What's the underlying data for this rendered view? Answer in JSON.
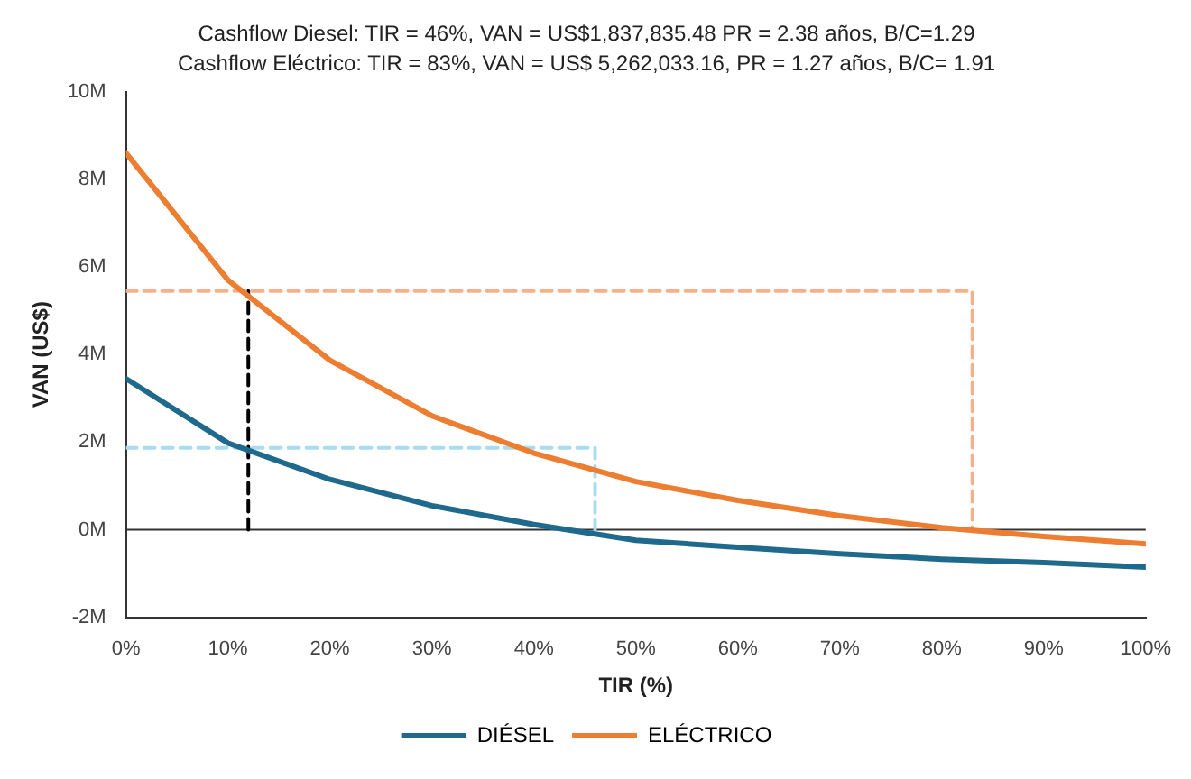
{
  "chart_data": {
    "type": "line",
    "title": "Cashflow Diesel: TIR = 46%, VAN = US$1,837,835.48 PR = 2.38 años, B/C=1.29",
    "subtitle": "Cashflow Eléctrico: TIR = 83%, VAN = US$ 5,262,033.16, PR = 1.27 años, B/C= 1.91",
    "xlabel": "TIR (%)",
    "ylabel": "VAN (US$)",
    "x": [
      0,
      10,
      20,
      30,
      40,
      50,
      60,
      70,
      80,
      90,
      100
    ],
    "xlim": [
      0,
      100
    ],
    "xticks": [
      {
        "value": 0,
        "label": "0%"
      },
      {
        "value": 10,
        "label": "10%"
      },
      {
        "value": 20,
        "label": "20%"
      },
      {
        "value": 30,
        "label": "30%"
      },
      {
        "value": 40,
        "label": "40%"
      },
      {
        "value": 50,
        "label": "50%"
      },
      {
        "value": 60,
        "label": "60%"
      },
      {
        "value": 70,
        "label": "70%"
      },
      {
        "value": 80,
        "label": "80%"
      },
      {
        "value": 90,
        "label": "90%"
      },
      {
        "value": 100,
        "label": "100%"
      }
    ],
    "ylim": [
      -2,
      10
    ],
    "yticks": [
      {
        "value": -2,
        "label": "-2M"
      },
      {
        "value": 0,
        "label": "0M"
      },
      {
        "value": 2,
        "label": "2M"
      },
      {
        "value": 4,
        "label": "4M"
      },
      {
        "value": 6,
        "label": "6M"
      },
      {
        "value": 8,
        "label": "8M"
      },
      {
        "value": 10,
        "label": "10M"
      }
    ],
    "series": [
      {
        "name": "DIÉSEL",
        "color": "#1f6a8c",
        "values": [
          3.45,
          1.98,
          1.15,
          0.55,
          0.12,
          -0.24,
          -0.4,
          -0.55,
          -0.67,
          -0.75,
          -0.85
        ]
      },
      {
        "name": "ELÉCTRICO",
        "color": "#ed7d31",
        "values": [
          8.6,
          5.7,
          3.87,
          2.6,
          1.75,
          1.1,
          0.67,
          0.32,
          0.05,
          -0.15,
          -0.32
        ]
      },
      {
        "type": "line",
        "color": "#f8b08a",
        "line_style": "dashed",
        "x": [
          0,
          83,
          83
        ],
        "values": [
          5.45,
          5.45,
          0
        ]
      },
      {
        "type": "line",
        "color": "#a9dcf0",
        "line_style": "dashed",
        "x": [
          0,
          46,
          46
        ],
        "values": [
          1.87,
          1.87,
          0
        ]
      },
      {
        "type": "line",
        "color": "#000000",
        "line_style": "dashed",
        "x": [
          12,
          12
        ],
        "values": [
          0,
          5.45
        ]
      }
    ],
    "ref_lines": [
      {
        "axis": "y",
        "value": 0,
        "color": "#333333"
      }
    ],
    "legend": "bottom",
    "marker": "none",
    "grid": false
  }
}
